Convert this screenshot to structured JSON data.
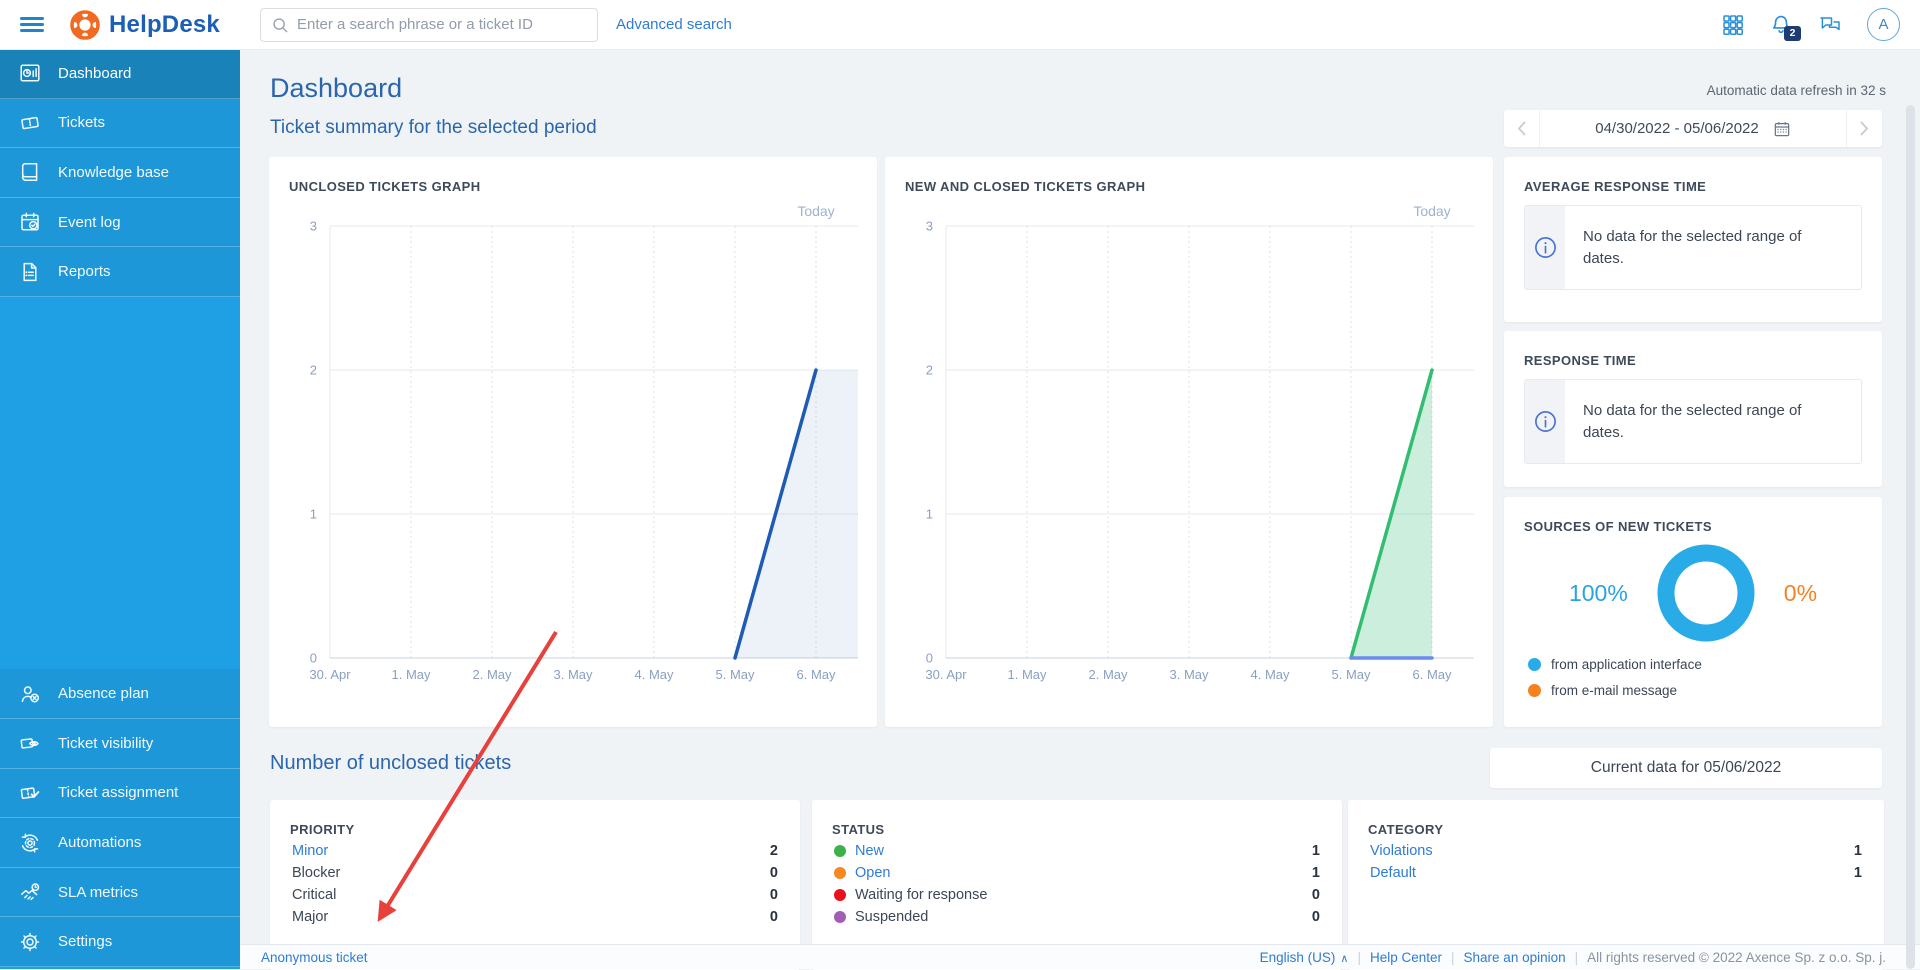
{
  "topbar": {
    "brand": "HelpDesk",
    "search_placeholder": "Enter a search phrase or a ticket ID",
    "advanced_search": "Advanced search",
    "notifications_count": "2",
    "avatar_initial": "A"
  },
  "sidebar": {
    "main": [
      {
        "label": "Dashboard",
        "icon": "dashboard-icon",
        "active": true
      },
      {
        "label": "Tickets",
        "icon": "tickets-icon"
      },
      {
        "label": "Knowledge base",
        "icon": "knowledge-base-icon"
      },
      {
        "label": "Event log",
        "icon": "event-log-icon"
      },
      {
        "label": "Reports",
        "icon": "reports-icon"
      }
    ],
    "secondary": [
      {
        "label": "Absence plan",
        "icon": "absence-plan-icon"
      },
      {
        "label": "Ticket visibility",
        "icon": "ticket-visibility-icon"
      },
      {
        "label": "Ticket assignment",
        "icon": "ticket-assignment-icon"
      },
      {
        "label": "Automations",
        "icon": "automations-icon"
      },
      {
        "label": "SLA metrics",
        "icon": "sla-metrics-icon"
      },
      {
        "label": "Settings",
        "icon": "settings-icon"
      }
    ]
  },
  "header": {
    "title": "Dashboard",
    "subtitle": "Ticket summary for the selected period",
    "refresh_note": "Automatic data refresh in 32 s",
    "date_range": "04/30/2022 - 05/06/2022"
  },
  "chart_data": [
    {
      "type": "area",
      "title": "UNCLOSED TICKETS GRAPH",
      "x": [
        "30. Apr",
        "1. May",
        "2. May",
        "3. May",
        "4. May",
        "5. May",
        "6. May"
      ],
      "ylim": [
        0,
        3
      ],
      "yticks": [
        0,
        1,
        2,
        3
      ],
      "annotation": "Today",
      "grid": true,
      "legend": false,
      "series": [
        {
          "name": "Unclosed tickets",
          "color": "#1d5bb4",
          "fill": "rgba(29,91,180,0.08)",
          "values": [
            0,
            0,
            0,
            0,
            0,
            0,
            2
          ],
          "line_start_index": 5,
          "extend_to_right_edge": true
        }
      ]
    },
    {
      "type": "area",
      "title": "NEW AND CLOSED TICKETS GRAPH",
      "x": [
        "30. Apr",
        "1. May",
        "2. May",
        "3. May",
        "4. May",
        "5. May",
        "6. May"
      ],
      "ylim": [
        0,
        3
      ],
      "yticks": [
        0,
        1,
        2,
        3
      ],
      "annotation": "Today",
      "grid": true,
      "legend": false,
      "series": [
        {
          "name": "New tickets",
          "color": "#33bd73",
          "fill": "rgba(51,189,115,0.25)",
          "values": [
            0,
            0,
            0,
            0,
            0,
            0,
            2
          ],
          "line_start_index": 5,
          "extend_to_right_edge": false
        },
        {
          "name": "Closed tickets",
          "color": "#6b8ced",
          "values": [
            0,
            0,
            0,
            0,
            0,
            0,
            0
          ],
          "line_start_index": 5,
          "extend_to_right_edge": false
        }
      ]
    },
    {
      "type": "donut",
      "title": "SOURCES OF NEW TICKETS",
      "slices": [
        {
          "label": "from application interface",
          "value": 100,
          "color": "#29abe8"
        },
        {
          "label": "from e-mail message",
          "value": 0,
          "color": "#f5821f"
        }
      ]
    }
  ],
  "right_panel": {
    "average_response_time": {
      "title": "AVERAGE RESPONSE TIME",
      "message": "No data for the selected range of dates."
    },
    "response_time": {
      "title": "RESPONSE TIME",
      "message": "No data for the selected range of dates."
    },
    "sources": {
      "title": "SOURCES OF NEW TICKETS",
      "left_pct": "100%",
      "right_pct": "0%"
    }
  },
  "unclosed_section": {
    "title": "Number of unclosed tickets",
    "current_data": "Current data for 05/06/2022",
    "cards": [
      {
        "title": "PRIORITY",
        "rows": [
          {
            "label": "Minor",
            "value": "2",
            "link": true
          },
          {
            "label": "Blocker",
            "value": "0",
            "link": false
          },
          {
            "label": "Critical",
            "value": "0",
            "link": false
          },
          {
            "label": "Major",
            "value": "0",
            "link": false
          }
        ]
      },
      {
        "title": "STATUS",
        "rows": [
          {
            "label": "New",
            "value": "1",
            "link": true,
            "dot": "#3db049"
          },
          {
            "label": "Open",
            "value": "1",
            "link": true,
            "dot": "#f6891f"
          },
          {
            "label": "Waiting for response",
            "value": "0",
            "link": false,
            "dot": "#e8111c"
          },
          {
            "label": "Suspended",
            "value": "0",
            "link": false,
            "dot": "#a15fb4"
          }
        ]
      },
      {
        "title": "CATEGORY",
        "rows": [
          {
            "label": "Violations",
            "value": "1",
            "link": true
          },
          {
            "label": "Default",
            "value": "1",
            "link": true
          }
        ]
      }
    ]
  },
  "footer": {
    "anonymous_ticket": "Anonymous ticket",
    "language": "English (US)",
    "help_center": "Help Center",
    "share_opinion": "Share an opinion",
    "copyright": "All rights reserved © 2022 Axence Sp. z o.o. Sp. j."
  },
  "colors": {
    "sidebar": "#1fa0e4",
    "accent_blue": "#2e7cd6",
    "heading_blue": "#2b66ad",
    "donut_blue": "#29abe8",
    "donut_orange": "#f5821f",
    "arrow_red": "#e8403a"
  }
}
